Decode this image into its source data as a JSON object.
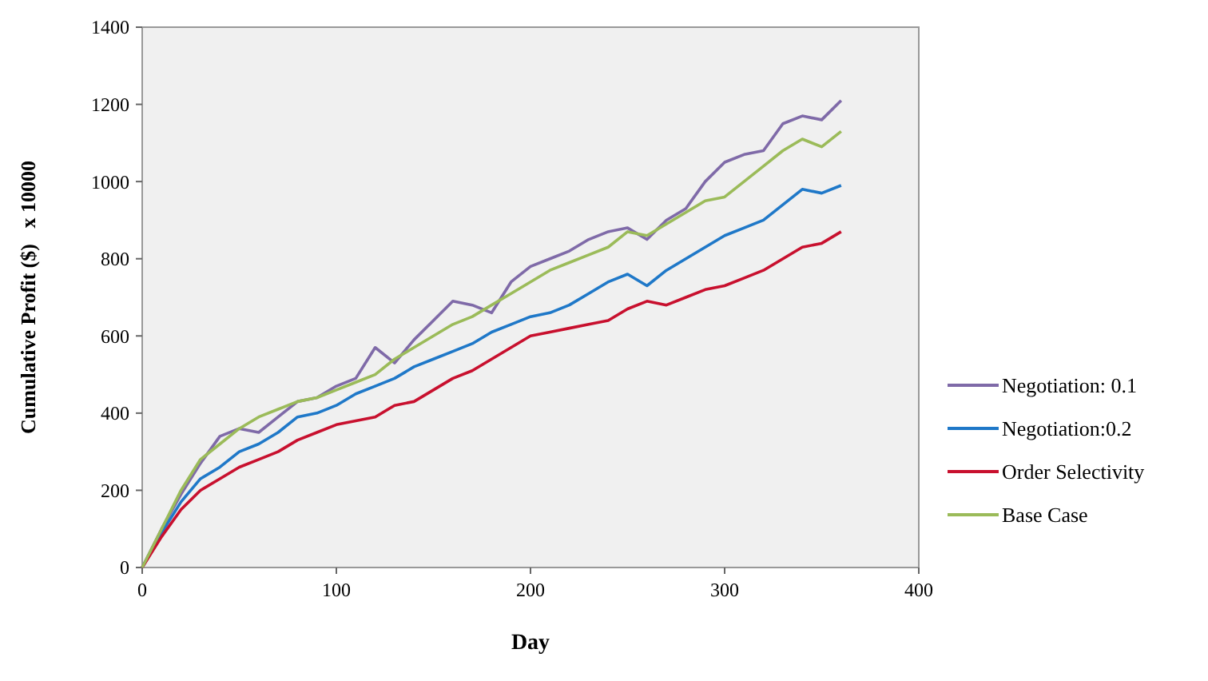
{
  "chart_data": {
    "type": "line",
    "xlabel": "Day",
    "ylabel": "Cumulative Profit ($)   x 10000",
    "x": [
      0,
      10,
      20,
      30,
      40,
      50,
      60,
      70,
      80,
      90,
      100,
      110,
      120,
      130,
      140,
      150,
      160,
      170,
      180,
      190,
      200,
      210,
      220,
      230,
      240,
      250,
      260,
      270,
      280,
      290,
      300,
      310,
      320,
      330,
      340,
      350,
      360
    ],
    "xlim": [
      0,
      400
    ],
    "xticks": [
      0,
      100,
      200,
      300,
      400
    ],
    "ylim": [
      0,
      1400
    ],
    "yticks": [
      0,
      200,
      400,
      600,
      800,
      1000,
      1200,
      1400
    ],
    "grid": false,
    "legend": "right",
    "line_style": "solid",
    "marker": "none",
    "series": [
      {
        "name": "Negotiation: 0.1",
        "color": "#7f6aa8",
        "values": [
          0,
          100,
          190,
          270,
          340,
          360,
          350,
          390,
          430,
          440,
          470,
          490,
          570,
          530,
          590,
          640,
          690,
          680,
          660,
          740,
          780,
          800,
          820,
          850,
          870,
          880,
          850,
          900,
          930,
          1000,
          1050,
          1070,
          1080,
          1150,
          1170,
          1160,
          1210
        ]
      },
      {
        "name": "Negotiation:0.2",
        "color": "#1f78c8",
        "values": [
          0,
          90,
          170,
          230,
          260,
          300,
          320,
          350,
          390,
          400,
          420,
          450,
          470,
          490,
          520,
          540,
          560,
          580,
          610,
          630,
          650,
          660,
          680,
          710,
          740,
          760,
          730,
          770,
          800,
          830,
          860,
          880,
          900,
          940,
          980,
          970,
          990
        ]
      },
      {
        "name": "Order Selectivity",
        "color": "#c8102e",
        "values": [
          0,
          80,
          150,
          200,
          230,
          260,
          280,
          300,
          330,
          350,
          370,
          380,
          390,
          420,
          430,
          460,
          490,
          510,
          540,
          570,
          600,
          610,
          620,
          630,
          640,
          670,
          690,
          680,
          700,
          720,
          730,
          750,
          770,
          800,
          830,
          840,
          870
        ]
      },
      {
        "name": "Base Case",
        "color": "#9bbb59",
        "values": [
          0,
          100,
          200,
          280,
          320,
          360,
          390,
          410,
          430,
          440,
          460,
          480,
          500,
          540,
          570,
          600,
          630,
          650,
          680,
          710,
          740,
          770,
          790,
          810,
          830,
          870,
          860,
          890,
          920,
          950,
          960,
          1000,
          1040,
          1080,
          1110,
          1090,
          1130
        ]
      }
    ]
  }
}
